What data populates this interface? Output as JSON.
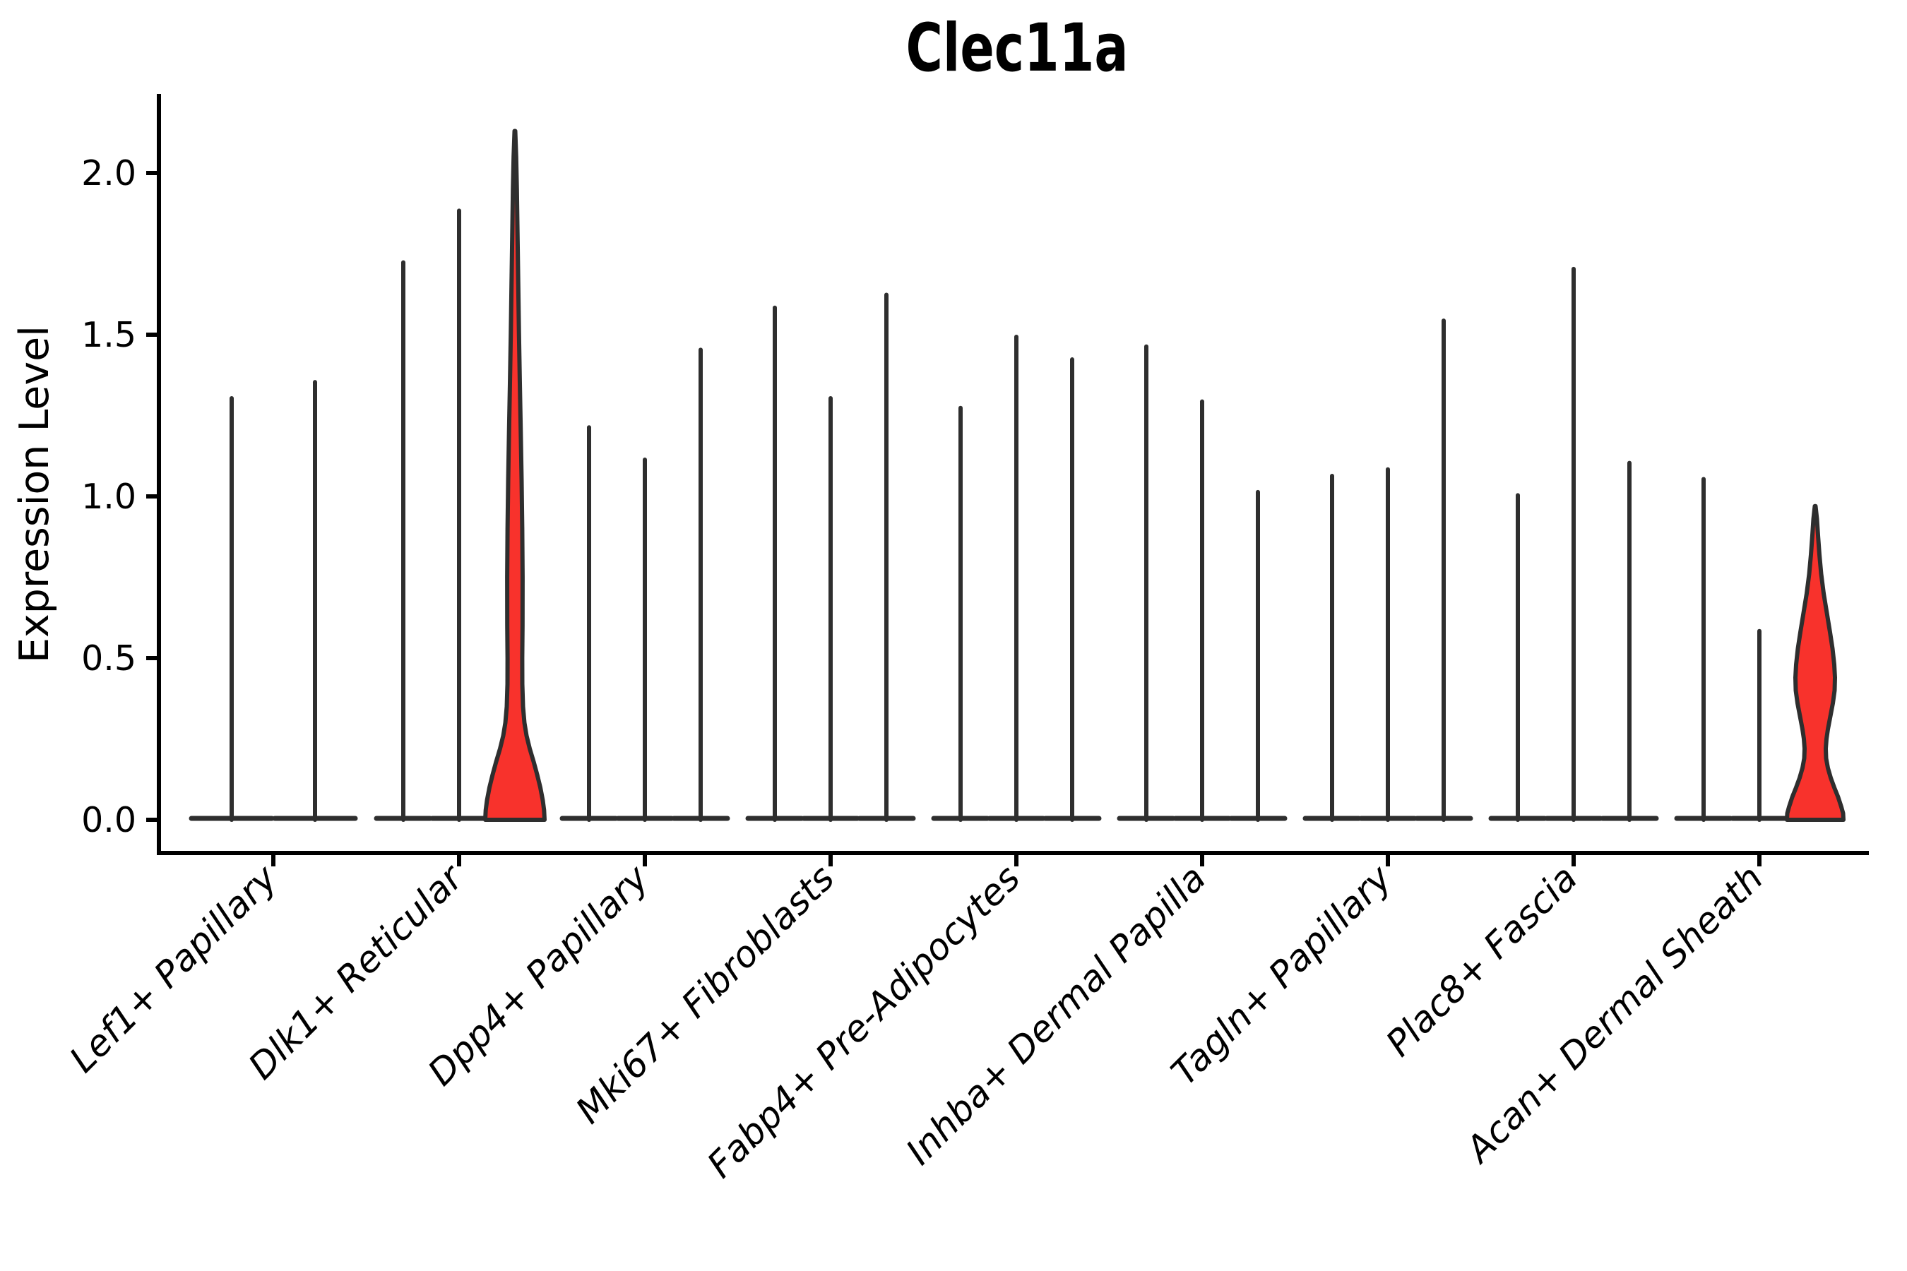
{
  "title": "Clec11a",
  "chart_data": {
    "type": "violin",
    "title": "Clec11a",
    "xlabel": "",
    "ylabel": "Expression Level",
    "yticks": [
      "0.0",
      "0.5",
      "1.0",
      "1.5",
      "2.0"
    ],
    "ytick_values": [
      0.0,
      0.5,
      1.0,
      1.5,
      2.0
    ],
    "ylim": [
      -0.11,
      2.25
    ],
    "grid": false,
    "legend": "none",
    "highlight_fill_color": "#f8322c",
    "violin_outline_color": "#2e2e2e",
    "axis_color": "#000000",
    "categories": [
      "Lef1+ Papillary",
      "Dlk1+ Reticular",
      "Dpp4+ Papillary",
      "Mki67+ Fibroblasts",
      "Fabp4+ Pre-Adipocytes",
      "Inhba+ Dermal Papilla",
      "Tagln+ Papillary",
      "Plac8+ Fascia",
      "Acan+ Dermal Sheath"
    ],
    "groups": [
      {
        "label": "Lef1+ Papillary",
        "violins": [
          {
            "max": 1.31,
            "filled": false
          },
          {
            "max": 1.36,
            "filled": false
          }
        ]
      },
      {
        "label": "Dlk1+ Reticular",
        "violins": [
          {
            "max": 1.73,
            "filled": false
          },
          {
            "max": 1.89,
            "filled": false
          },
          {
            "max": 2.13,
            "filled": true,
            "profile": [
              [
                2.13,
                0.5
              ],
              [
                2.05,
                1.8
              ],
              [
                1.95,
                2.8
              ],
              [
                1.8,
                3.8
              ],
              [
                1.65,
                4.8
              ],
              [
                1.5,
                5.8
              ],
              [
                1.35,
                7.0
              ],
              [
                1.2,
                8.3
              ],
              [
                1.05,
                9.5
              ],
              [
                0.9,
                10.4
              ],
              [
                0.75,
                10.9
              ],
              [
                0.6,
                10.8
              ],
              [
                0.5,
                10.4
              ],
              [
                0.42,
                10.5
              ],
              [
                0.35,
                11.5
              ],
              [
                0.3,
                13.5
              ],
              [
                0.26,
                16.5
              ],
              [
                0.22,
                21.0
              ],
              [
                0.18,
                26.5
              ],
              [
                0.14,
                31.5
              ],
              [
                0.1,
                36.0
              ],
              [
                0.06,
                39.5
              ],
              [
                0.03,
                41.3
              ],
              [
                0.0,
                42.0
              ]
            ]
          }
        ]
      },
      {
        "label": "Dpp4+ Papillary",
        "violins": [
          {
            "max": 1.22,
            "filled": false
          },
          {
            "max": 1.12,
            "filled": false
          },
          {
            "max": 1.46,
            "filled": false
          }
        ]
      },
      {
        "label": "Mki67+ Fibroblasts",
        "violins": [
          {
            "max": 1.59,
            "filled": false
          },
          {
            "max": 1.31,
            "filled": false
          },
          {
            "max": 1.63,
            "filled": false
          }
        ]
      },
      {
        "label": "Fabp4+ Pre-Adipocytes",
        "violins": [
          {
            "max": 1.28,
            "filled": false
          },
          {
            "max": 1.5,
            "filled": false
          },
          {
            "max": 1.43,
            "filled": false
          }
        ]
      },
      {
        "label": "Inhba+ Dermal Papilla",
        "violins": [
          {
            "max": 1.47,
            "filled": false
          },
          {
            "max": 1.3,
            "filled": false
          },
          {
            "max": 1.02,
            "filled": false
          }
        ]
      },
      {
        "label": "Tagln+ Papillary",
        "violins": [
          {
            "max": 1.07,
            "filled": false
          },
          {
            "max": 1.09,
            "filled": false
          },
          {
            "max": 1.55,
            "filled": false
          }
        ]
      },
      {
        "label": "Plac8+ Fascia",
        "violins": [
          {
            "max": 1.01,
            "filled": false
          },
          {
            "max": 1.71,
            "filled": false
          },
          {
            "max": 1.11,
            "filled": false
          }
        ]
      },
      {
        "label": "Acan+ Dermal Sheath",
        "violins": [
          {
            "max": 1.06,
            "filled": false
          },
          {
            "max": 0.59,
            "filled": false
          },
          {
            "max": 0.97,
            "filled": true,
            "profile": [
              [
                0.97,
                0.5
              ],
              [
                0.93,
                2.5
              ],
              [
                0.88,
                4.0
              ],
              [
                0.82,
                6.0
              ],
              [
                0.76,
                8.5
              ],
              [
                0.7,
                12.0
              ],
              [
                0.64,
                16.5
              ],
              [
                0.58,
                21.0
              ],
              [
                0.53,
                24.5
              ],
              [
                0.48,
                27.0
              ],
              [
                0.44,
                28.0
              ],
              [
                0.4,
                27.5
              ],
              [
                0.36,
                25.0
              ],
              [
                0.32,
                21.5
              ],
              [
                0.28,
                18.0
              ],
              [
                0.25,
                16.0
              ],
              [
                0.22,
                15.0
              ],
              [
                0.19,
                15.5
              ],
              [
                0.16,
                18.0
              ],
              [
                0.13,
                22.0
              ],
              [
                0.1,
                27.0
              ],
              [
                0.07,
                32.5
              ],
              [
                0.04,
                37.0
              ],
              [
                0.02,
                39.5
              ],
              [
                0.0,
                40.0
              ]
            ]
          }
        ]
      }
    ]
  }
}
